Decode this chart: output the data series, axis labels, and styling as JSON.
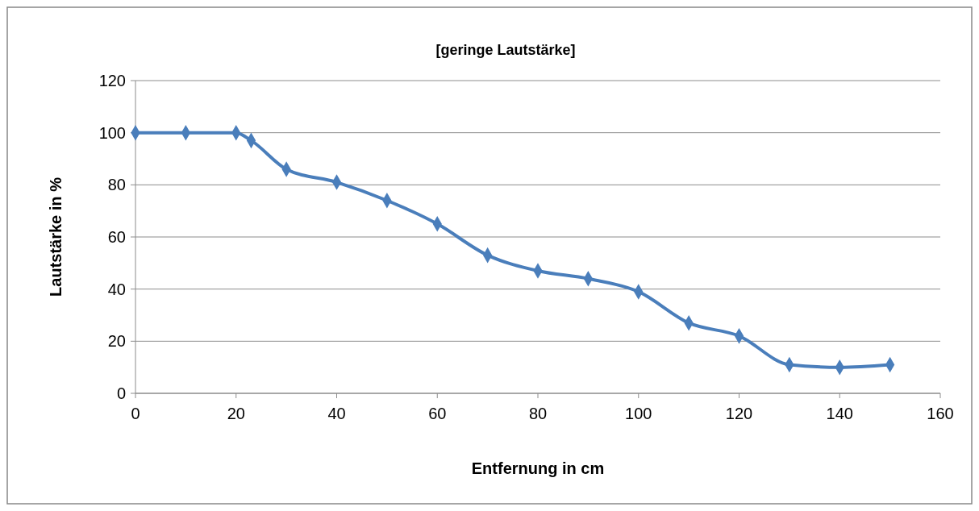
{
  "chart_data": {
    "type": "line",
    "title": "[geringe Lautstärke]",
    "xlabel": "Entfernung in cm",
    "ylabel": "Lautstärke in %",
    "x": [
      0,
      10,
      20,
      23,
      30,
      40,
      50,
      60,
      70,
      80,
      90,
      100,
      110,
      120,
      130,
      140,
      150
    ],
    "series": [
      {
        "color": "#4a7ebb",
        "values": [
          100,
          100,
          100,
          97,
          86,
          81,
          74,
          65,
          53,
          47,
          44,
          39,
          27,
          22,
          11,
          10,
          11
        ]
      }
    ],
    "xlim": [
      0,
      160
    ],
    "xticks": [
      0,
      20,
      40,
      60,
      80,
      100,
      120,
      140,
      160
    ],
    "ylim": [
      0,
      120
    ],
    "yticks": [
      0,
      20,
      40,
      60,
      80,
      100,
      120
    ],
    "grid": "y",
    "marker": "diamond",
    "line_style": "solid"
  }
}
